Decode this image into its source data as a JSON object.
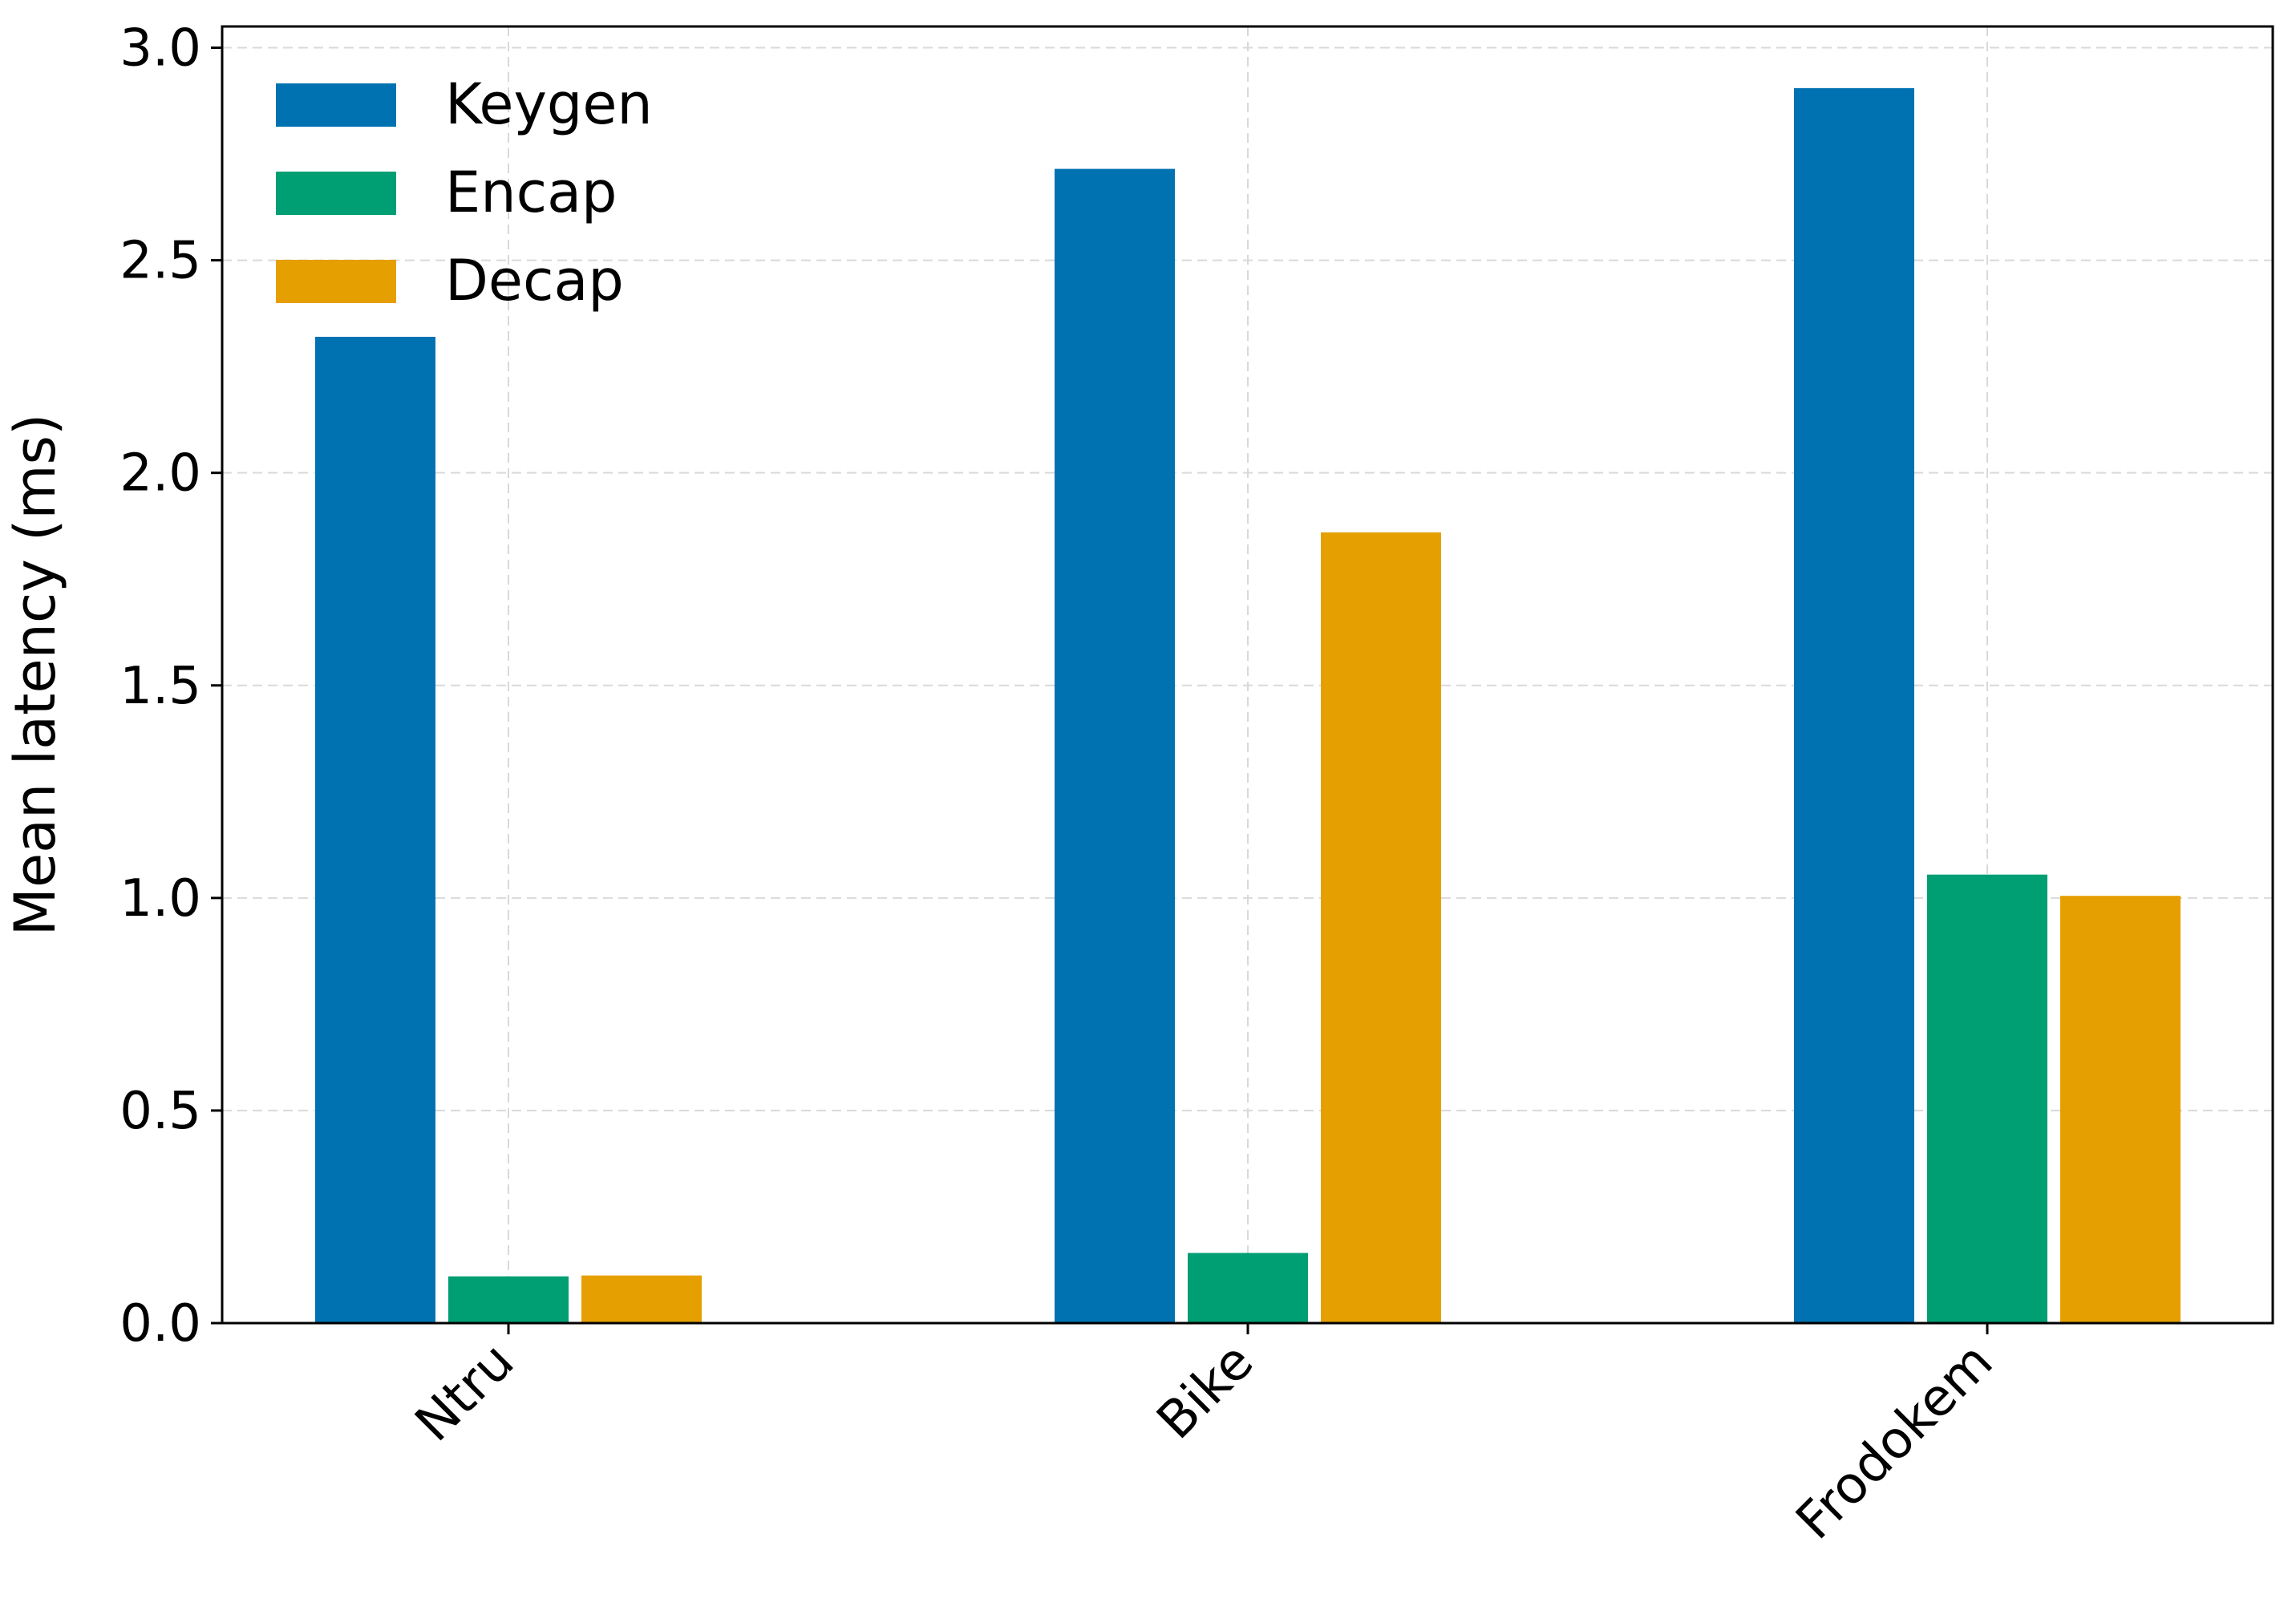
{
  "chart_data": {
    "type": "bar",
    "title": "",
    "xlabel": "",
    "ylabel": "Mean latency (ms)",
    "categories": [
      "Ntru",
      "Bike",
      "Frodokem"
    ],
    "series": [
      {
        "name": "Keygen",
        "color": "#0072B2",
        "values": [
          2.32,
          2.715,
          2.905
        ]
      },
      {
        "name": "Encap",
        "color": "#009E73",
        "values": [
          0.11,
          0.165,
          1.055
        ]
      },
      {
        "name": "Decap",
        "color": "#E69F00",
        "values": [
          0.112,
          1.86,
          1.005
        ]
      }
    ],
    "ylim": [
      0,
      3.05
    ],
    "yticks": [
      0.0,
      0.5,
      1.0,
      1.5,
      2.0,
      2.5,
      3.0
    ],
    "ytick_labels": [
      "0.0",
      "0.5",
      "1.0",
      "1.5",
      "2.0",
      "2.5",
      "3.0"
    ],
    "grid": true,
    "legend_position": "top-left",
    "xtick_rotation": 45
  }
}
